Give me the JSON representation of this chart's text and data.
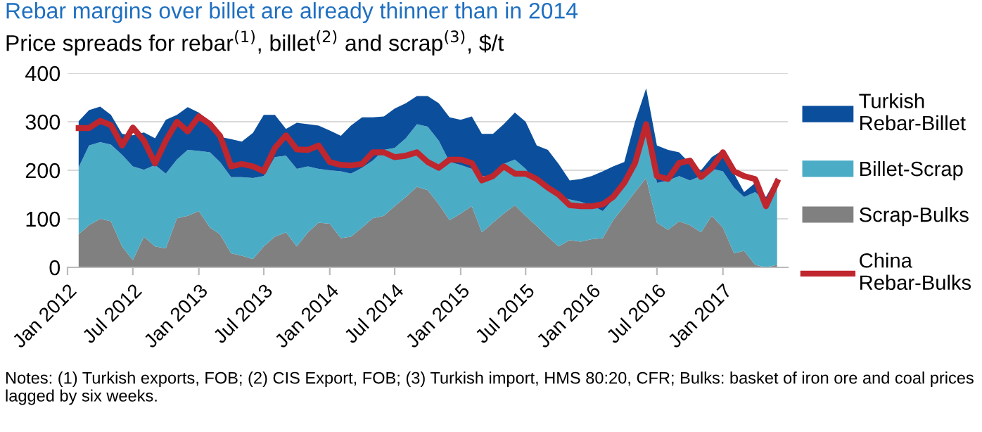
{
  "chart_data": {
    "type": "area",
    "stacked": true,
    "title": "Rebar margins over billet are already thinner than in 2014",
    "subtitle": "Price spreads for rebar$^{(1)}$, billet$^{(2)}$ and scrap$^{(3)}$, $/t",
    "x": [
      "2012-02",
      "2012-03",
      "2012-04",
      "2012-05",
      "2012-06",
      "2012-07",
      "2012-08",
      "2012-09",
      "2012-10",
      "2012-11",
      "2012-12",
      "2013-01",
      "2013-02",
      "2013-03",
      "2013-04",
      "2013-05",
      "2013-06",
      "2013-07",
      "2013-08",
      "2013-09",
      "2013-10",
      "2013-11",
      "2013-12",
      "2014-01",
      "2014-02",
      "2014-03",
      "2014-04",
      "2014-05",
      "2014-06",
      "2014-07",
      "2014-08",
      "2014-09",
      "2014-10",
      "2014-11",
      "2014-12",
      "2015-01",
      "2015-02",
      "2015-03",
      "2015-04",
      "2015-05",
      "2015-06",
      "2015-07",
      "2015-08",
      "2015-09",
      "2015-10",
      "2015-11",
      "2015-12",
      "2016-01",
      "2016-02",
      "2016-03",
      "2016-04",
      "2016-05",
      "2016-06",
      "2016-07",
      "2016-08",
      "2016-09",
      "2016-10",
      "2016-11",
      "2016-12",
      "2017-01",
      "2017-02",
      "2017-03",
      "2017-04",
      "2017-05",
      "2017-06"
    ],
    "series": [
      {
        "name": "Scrap-Bulks",
        "color": "#808080",
        "values": [
          68,
          87,
          100,
          95,
          43,
          15,
          63,
          43,
          39,
          101,
          106,
          116,
          82,
          68,
          29,
          24,
          17,
          43,
          63,
          72,
          43,
          72,
          92,
          90,
          60,
          63,
          82,
          101,
          106,
          126,
          145,
          166,
          159,
          130,
          97,
          111,
          126,
          72,
          92,
          111,
          128,
          106,
          85,
          63,
          43,
          56,
          53,
          58,
          60,
          97,
          126,
          155,
          184,
          92,
          77,
          95,
          87,
          72,
          106,
          82,
          29,
          34,
          5,
          0,
          5
        ]
      },
      {
        "name": "Billet-Scrap",
        "color": "#4bacc6",
        "values": [
          138,
          164,
          158,
          158,
          189,
          193,
          138,
          168,
          154,
          121,
          136,
          124,
          155,
          149,
          157,
          162,
          167,
          145,
          164,
          158,
          160,
          136,
          111,
          110,
          138,
          130,
          123,
          119,
          136,
          120,
          121,
          129,
          131,
          131,
          120,
          100,
          77,
          116,
          96,
          102,
          94,
          97,
          89,
          101,
          102,
          84,
          82,
          70,
          56,
          43,
          48,
          62,
          111,
          82,
          102,
          93,
          92,
          116,
          97,
          116,
          135,
          111,
          150,
          135,
          169
        ]
      },
      {
        "name": "Turkish Rebar-Billet",
        "color": "#0b4f9c",
        "values": [
          95,
          73,
          73,
          61,
          43,
          64,
          77,
          55,
          111,
          92,
          88,
          79,
          63,
          52,
          78,
          73,
          93,
          126,
          87,
          55,
          95,
          87,
          89,
          82,
          73,
          99,
          104,
          89,
          69,
          81,
          72,
          58,
          63,
          77,
          92,
          93,
          108,
          87,
          87,
          82,
          97,
          97,
          77,
          78,
          68,
          39,
          47,
          60,
          82,
          68,
          43,
          83,
          74,
          77,
          63,
          49,
          35,
          12,
          24,
          44,
          29,
          10,
          19,
          10,
          12
        ]
      },
      {
        "name": "China Rebar-Bulks",
        "type": "line",
        "color": "#c0262d",
        "values": [
          287,
          287,
          302,
          293,
          251,
          288,
          261,
          214,
          261,
          300,
          280,
          311,
          295,
          271,
          208,
          213,
          208,
          198,
          246,
          272,
          243,
          242,
          251,
          217,
          211,
          210,
          213,
          237,
          237,
          227,
          230,
          237,
          217,
          205,
          222,
          222,
          215,
          179,
          188,
          208,
          193,
          193,
          182,
          164,
          150,
          128,
          126,
          126,
          130,
          145,
          174,
          215,
          295,
          188,
          182,
          215,
          220,
          186,
          205,
          237,
          198,
          188,
          182,
          126,
          176
        ]
      }
    ],
    "ylim": [
      0,
      400
    ],
    "yticks": [
      0,
      100,
      200,
      300,
      400
    ],
    "xlim": [
      "2012-01",
      "2017-07"
    ],
    "xticks": [
      {
        "value": "2012-01",
        "label": "Jan 2012"
      },
      {
        "value": "2012-07",
        "label": "Jul 2012"
      },
      {
        "value": "2013-01",
        "label": "Jan 2013"
      },
      {
        "value": "2013-07",
        "label": "Jul 2013"
      },
      {
        "value": "2014-01",
        "label": "Jan 2014"
      },
      {
        "value": "2014-07",
        "label": "Jul 2014"
      },
      {
        "value": "2015-01",
        "label": "Jan 2015"
      },
      {
        "value": "2015-07",
        "label": "Jul 2015"
      },
      {
        "value": "2016-01",
        "label": "Jan 2016"
      },
      {
        "value": "2016-07",
        "label": "Jul 2016"
      },
      {
        "value": "2017-01",
        "label": "Jan 2017"
      }
    ],
    "grid": "y",
    "legend": "right",
    "annotations": [
      "Notes: (1) Turkish exports, FOB; (2) CIS Export, FOB; (3) Turkish import, HMS 80:20, CFR; Bulks: basket of iron ore and coal prices lagged by six weeks."
    ]
  }
}
